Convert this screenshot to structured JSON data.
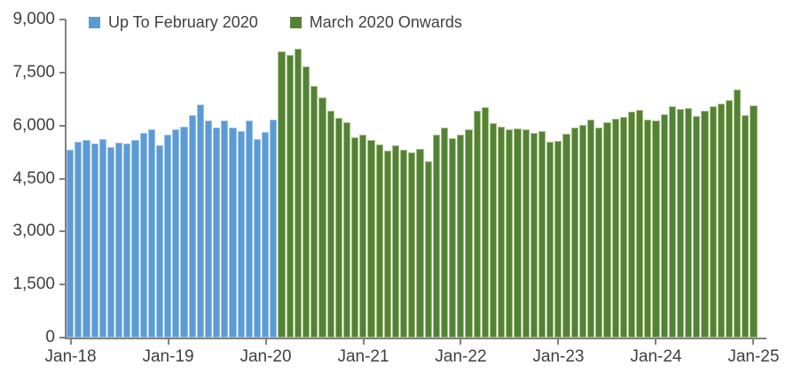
{
  "legend": {
    "items": [
      {
        "label": "Up To February 2020",
        "color": "#5b9bd5"
      },
      {
        "label": "March 2020 Onwards",
        "color": "#548235"
      }
    ]
  },
  "axis": {
    "y_tick_labels": [
      "0",
      "1,500",
      "3,000",
      "4,500",
      "6,000",
      "7,500",
      "9,000"
    ],
    "x_tick_every": 12
  },
  "chart_data": {
    "type": "bar",
    "title": "",
    "xlabel": "",
    "ylabel": "",
    "ylim": [
      0,
      9000
    ],
    "y_tick_step": 1500,
    "grid": false,
    "legend_position": "top-left-inside",
    "x": [
      "Jan-18",
      "Feb-18",
      "Mar-18",
      "Apr-18",
      "May-18",
      "Jun-18",
      "Jul-18",
      "Aug-18",
      "Sep-18",
      "Oct-18",
      "Nov-18",
      "Dec-18",
      "Jan-19",
      "Feb-19",
      "Mar-19",
      "Apr-19",
      "May-19",
      "Jun-19",
      "Jul-19",
      "Aug-19",
      "Sep-19",
      "Oct-19",
      "Nov-19",
      "Dec-19",
      "Jan-20",
      "Feb-20",
      "Mar-20",
      "Apr-20",
      "May-20",
      "Jun-20",
      "Jul-20",
      "Aug-20",
      "Sep-20",
      "Oct-20",
      "Nov-20",
      "Dec-20",
      "Jan-21",
      "Feb-21",
      "Mar-21",
      "Apr-21",
      "May-21",
      "Jun-21",
      "Jul-21",
      "Aug-21",
      "Sep-21",
      "Oct-21",
      "Nov-21",
      "Dec-21",
      "Jan-22",
      "Feb-22",
      "Mar-22",
      "Apr-22",
      "May-22",
      "Jun-22",
      "Jul-22",
      "Aug-22",
      "Sep-22",
      "Oct-22",
      "Nov-22",
      "Dec-22",
      "Jan-23",
      "Feb-23",
      "Mar-23",
      "Apr-23",
      "May-23",
      "Jun-23",
      "Jul-23",
      "Aug-23",
      "Sep-23",
      "Oct-23",
      "Nov-23",
      "Dec-23",
      "Jan-24",
      "Feb-24",
      "Mar-24",
      "Apr-24",
      "May-24",
      "Jun-24",
      "Jul-24",
      "Aug-24",
      "Sep-24",
      "Oct-24",
      "Nov-24",
      "Dec-24",
      "Jan-25"
    ],
    "series": [
      {
        "name": "Up To February 2020",
        "color": "#5b9bd5",
        "edge_color": "#9dc3e6",
        "range": "Jan-18 to Feb-20",
        "values": [
          5320,
          5530,
          5600,
          5490,
          5620,
          5400,
          5510,
          5480,
          5600,
          5780,
          5900,
          5450,
          5740,
          5880,
          5970,
          6300,
          6590,
          6130,
          5940,
          6150,
          5940,
          5850,
          6130,
          5610,
          5820,
          6170
        ]
      },
      {
        "name": "March 2020 Onwards",
        "color": "#548235",
        "edge_color": "#a9c08a",
        "range": "Mar-20 to Jan-25",
        "values": [
          8090,
          8010,
          8180,
          7680,
          7120,
          6800,
          6430,
          6220,
          6090,
          5670,
          5750,
          5590,
          5460,
          5280,
          5430,
          5320,
          5240,
          5340,
          4990,
          5740,
          5950,
          5630,
          5730,
          5880,
          6430,
          6510,
          6070,
          5970,
          5900,
          5920,
          5900,
          5800,
          5850,
          5550,
          5570,
          5760,
          5940,
          6010,
          6180,
          5940,
          6100,
          6200,
          6250,
          6400,
          6450,
          6180,
          6140,
          6320,
          6550,
          6480,
          6500,
          6260,
          6420,
          6550,
          6630,
          6710,
          7010,
          6300,
          6570
        ]
      }
    ],
    "axis_color": "#808080",
    "text_color": "#404040"
  }
}
